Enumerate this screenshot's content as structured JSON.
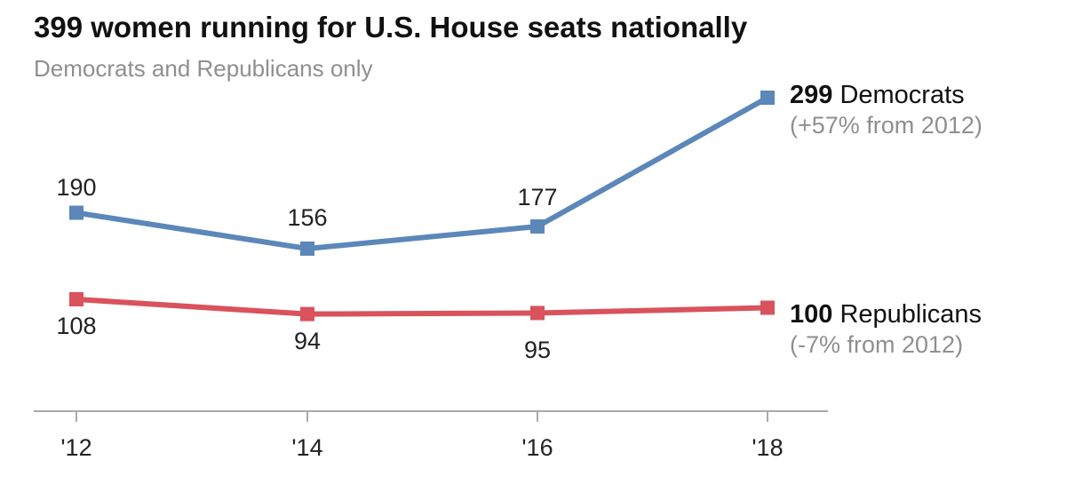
{
  "chart_data": {
    "type": "line",
    "title": "399 women running for U.S. House seats nationally",
    "subtitle": "Democrats and Republicans only",
    "categories": [
      "'12",
      "'14",
      "'16",
      "'18"
    ],
    "series": [
      {
        "name": "Democrats",
        "values": [
          190,
          156,
          177,
          299
        ],
        "data_labels": [
          "190",
          "156",
          "177"
        ],
        "end_value": "299",
        "end_name": "Democrats",
        "end_note": "(+57% from 2012)",
        "color": "#5b87b9"
      },
      {
        "name": "Republicans",
        "values": [
          108,
          94,
          95,
          100
        ],
        "data_labels": [
          "108",
          "94",
          "95"
        ],
        "end_value": "100",
        "end_name": "Republicans",
        "end_note": "(-7% from 2012)",
        "color": "#d9525c"
      }
    ],
    "grid": false,
    "legend": "direct labels at right end of lines"
  },
  "colors": {
    "axis": "#aaaaaa",
    "title": "#111111",
    "subtitle": "#8f8f8f",
    "label": "#222222",
    "note": "#8f8f8f"
  }
}
